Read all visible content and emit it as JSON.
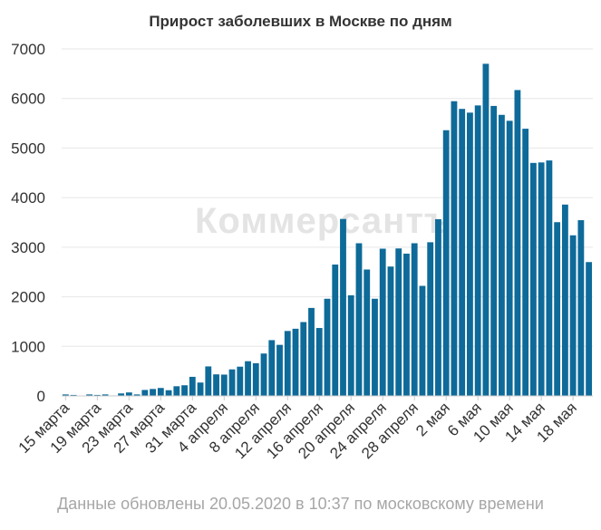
{
  "chart_data": {
    "type": "bar",
    "title": "Прирост заболевших в Москве по дням",
    "xlabel": "",
    "ylabel": "",
    "ylim": [
      0,
      7000
    ],
    "yticks": [
      0,
      1000,
      2000,
      3000,
      4000,
      5000,
      6000,
      7000
    ],
    "grid": true,
    "bar_color": "#0e6a99",
    "categories": [
      "15 марта",
      "16 марта",
      "17 марта",
      "18 марта",
      "19 марта",
      "20 марта",
      "21 марта",
      "22 марта",
      "23 марта",
      "24 марта",
      "25 марта",
      "26 марта",
      "27 марта",
      "28 марта",
      "29 марта",
      "30 марта",
      "31 марта",
      "1 апреля",
      "2 апреля",
      "3 апреля",
      "4 апреля",
      "5 апреля",
      "6 апреля",
      "7 апреля",
      "8 апреля",
      "9 апреля",
      "10 апреля",
      "11 апреля",
      "12 апреля",
      "13 апреля",
      "14 апреля",
      "15 апреля",
      "16 апреля",
      "17 апреля",
      "18 апреля",
      "19 апреля",
      "20 апреля",
      "21 апреля",
      "22 апреля",
      "23 апреля",
      "24 апреля",
      "25 апреля",
      "26 апреля",
      "27 апреля",
      "28 апреля",
      "29 апреля",
      "30 апреля",
      "1 мая",
      "2 мая",
      "3 мая",
      "4 мая",
      "5 мая",
      "6 мая",
      "7 мая",
      "8 мая",
      "9 мая",
      "10 мая",
      "11 мая",
      "12 мая",
      "13 мая",
      "14 мая",
      "15 мая",
      "16 мая",
      "17 мая",
      "18 мая",
      "19 мая",
      "20 мая"
    ],
    "tick_labels": [
      "15 марта",
      "19 марта",
      "23 марта",
      "27 марта",
      "31 марта",
      "4 апреля",
      "8 апреля",
      "12 апреля",
      "16 апреля",
      "20 апреля",
      "24 апреля",
      "28 апреля",
      "2 мая",
      "6 мая",
      "10 мая",
      "14 мая",
      "18 мая"
    ],
    "values": [
      30,
      20,
      5,
      30,
      20,
      30,
      10,
      50,
      70,
      30,
      120,
      140,
      160,
      115,
      195,
      215,
      385,
      270,
      595,
      435,
      430,
      535,
      590,
      700,
      660,
      855,
      1125,
      1030,
      1310,
      1355,
      1490,
      1775,
      1370,
      1960,
      2650,
      3570,
      2030,
      3080,
      2550,
      1960,
      2970,
      2610,
      2975,
      2870,
      3080,
      2220,
      3100,
      3565,
      5360,
      5945,
      5790,
      5715,
      5860,
      6700,
      5850,
      5670,
      5550,
      6170,
      5390,
      4700,
      4710,
      4750,
      3505,
      3860,
      3240,
      3545,
      2700
    ]
  },
  "footnote": "Данные обновлены 20.05.2020 в 10:37 по московскому времени",
  "watermark": "Коммерсантъ"
}
